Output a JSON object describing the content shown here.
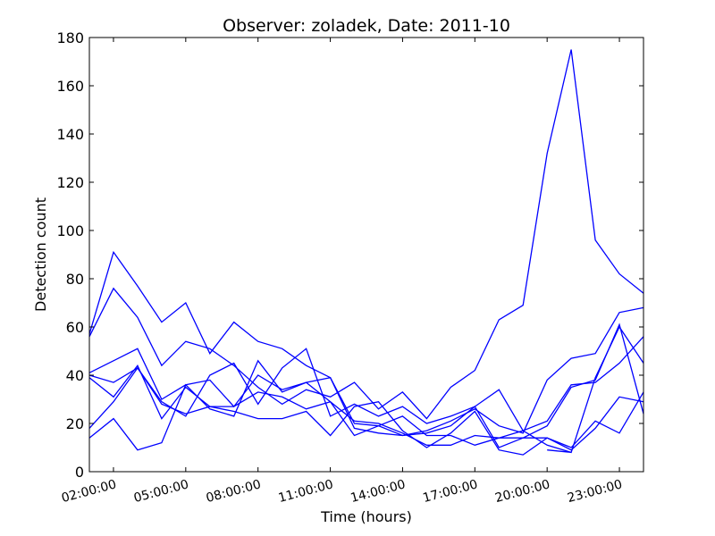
{
  "chart_data": {
    "type": "line",
    "title": "Observer: zoladek, Date: 2011-10",
    "xlabel": "Time (hours)",
    "ylabel": "Detection count",
    "xlim": [
      1,
      24
    ],
    "ylim": [
      0,
      180
    ],
    "x_unit": "hour of day",
    "x_ticks": [
      {
        "x": 2,
        "label": "02:00:00"
      },
      {
        "x": 5,
        "label": "05:00:00"
      },
      {
        "x": 8,
        "label": "08:00:00"
      },
      {
        "x": 11,
        "label": "11:00:00"
      },
      {
        "x": 14,
        "label": "14:00:00"
      },
      {
        "x": 17,
        "label": "17:00:00"
      },
      {
        "x": 20,
        "label": "20:00:00"
      },
      {
        "x": 23,
        "label": "23:00:00"
      }
    ],
    "y_ticks": [
      0,
      20,
      40,
      60,
      80,
      100,
      120,
      140,
      160,
      180
    ],
    "series_color": "#0000ff",
    "grid": false,
    "legend": "none",
    "x": [
      1,
      2,
      3,
      4,
      5,
      6,
      7,
      8,
      9,
      10,
      11,
      12,
      13,
      14,
      15,
      16,
      17,
      18,
      19,
      20,
      21,
      22,
      23,
      24
    ],
    "series": [
      {
        "values": [
          57,
          91,
          77,
          62,
          70,
          49,
          62,
          54,
          51,
          44,
          39,
          20,
          19,
          15,
          16,
          19,
          27,
          10,
          14,
          19,
          35,
          38,
          61,
          24
        ]
      },
      {
        "values": [
          56,
          76,
          64,
          44,
          54,
          51,
          44,
          35,
          28,
          34,
          31,
          37,
          26,
          33,
          22,
          35,
          42,
          63,
          69,
          132,
          175,
          96,
          82,
          74
        ]
      },
      {
        "values": [
          41,
          46,
          51,
          30,
          36,
          38,
          27,
          40,
          34,
          37,
          39,
          18,
          16,
          15,
          17,
          21,
          26,
          19,
          16,
          38,
          47,
          49,
          66,
          68
        ]
      },
      {
        "values": [
          40,
          37,
          43,
          29,
          23,
          40,
          45,
          28,
          43,
          51,
          23,
          28,
          23,
          27,
          20,
          23,
          27,
          34,
          17,
          21,
          36,
          37,
          45,
          56
        ]
      },
      {
        "values": [
          39,
          31,
          44,
          22,
          35,
          27,
          27,
          33,
          31,
          26,
          29,
          21,
          20,
          16,
          11,
          11,
          15,
          14,
          17,
          11,
          8,
          39,
          60,
          45
        ]
      },
      {
        "values": [
          18,
          29,
          43,
          28,
          24,
          27,
          25,
          22,
          22,
          25,
          15,
          27,
          29,
          17,
          10,
          16,
          25,
          9,
          7,
          14,
          10,
          21,
          16,
          33
        ]
      },
      {
        "values": [
          14,
          22,
          9,
          12,
          36,
          26,
          23,
          46,
          33,
          37,
          29,
          15,
          19,
          23,
          15,
          15,
          11,
          14,
          14,
          14,
          9,
          18,
          31,
          29
        ]
      },
      {
        "values": [
          null,
          null,
          null,
          null,
          null,
          null,
          null,
          null,
          null,
          null,
          null,
          null,
          null,
          null,
          null,
          null,
          null,
          null,
          null,
          9,
          8,
          null,
          null,
          null
        ]
      }
    ]
  }
}
